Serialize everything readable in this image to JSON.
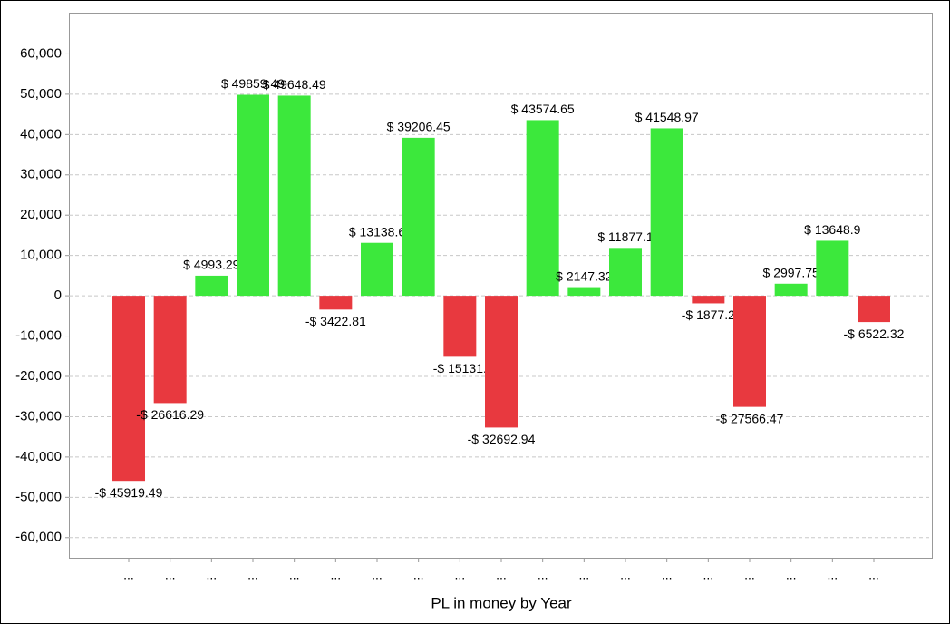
{
  "chart_data": {
    "type": "bar",
    "x_label": "PL in money by Year",
    "categories": [
      "...",
      "...",
      "...",
      "...",
      "...",
      "...",
      "...",
      "...",
      "...",
      "...",
      "...",
      "...",
      "...",
      "...",
      "...",
      "...",
      "...",
      "...",
      "..."
    ],
    "values": [
      -45919.49,
      -26616.29,
      4993.29,
      49859.49,
      49648.49,
      -3422.81,
      13138.6,
      39206.45,
      -15131,
      -32692.94,
      43574.65,
      2147.32,
      11877.1,
      41548.97,
      -1877.2,
      -27566.47,
      2997.75,
      13648.9,
      -6522.32
    ],
    "value_labels": [
      "-$ 45919.49",
      "-$ 26616.29",
      "$ 4993.29",
      "$ 49859.49",
      "$ 49648.49",
      "-$ 3422.81",
      "$ 13138.6",
      "$ 39206.45",
      "-$ 15131.",
      "-$ 32692.94",
      "$ 43574.65",
      "$ 2147.32",
      "$ 11877.1",
      "$ 41548.97",
      "-$ 1877.2",
      "-$ 27566.47",
      "$ 2997.75",
      "$ 13648.9",
      "-$ 6522.32"
    ],
    "color_positive": "#3ce83c",
    "color_negative": "#e8393f",
    "ylim": [
      -65000,
      70000
    ],
    "yticks": [
      {
        "value": -60000,
        "label": "-60,000"
      },
      {
        "value": -50000,
        "label": "-50,000"
      },
      {
        "value": -40000,
        "label": "-40,000"
      },
      {
        "value": -30000,
        "label": "-30,000"
      },
      {
        "value": -20000,
        "label": "-20,000"
      },
      {
        "value": -10000,
        "label": "-10,000"
      },
      0,
      {
        "value": 10000,
        "label": "10,000"
      },
      {
        "value": 20000,
        "label": "20,000"
      },
      {
        "value": 30000,
        "label": "30,000"
      },
      {
        "value": 40000,
        "label": "40,000"
      },
      {
        "value": 50000,
        "label": "50,000"
      },
      {
        "value": 60000,
        "label": "60,000"
      }
    ],
    "grid": true
  }
}
